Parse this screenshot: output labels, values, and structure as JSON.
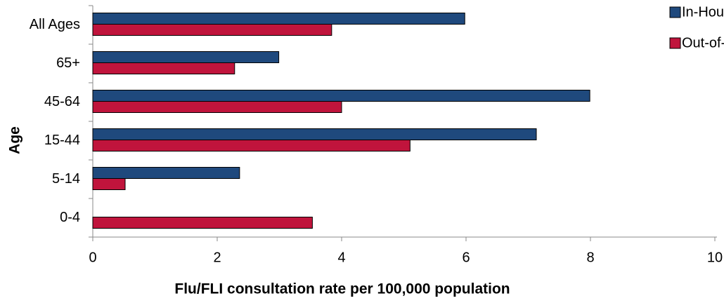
{
  "chart_data": {
    "type": "bar",
    "orientation": "horizontal",
    "categories": [
      "All Ages",
      "65+",
      "45-64",
      "15-44",
      "5-14",
      "0-4"
    ],
    "series": [
      {
        "name": "In-Hours",
        "color": "#1f497d",
        "values": [
          5.98,
          2.99,
          7.99,
          7.13,
          2.36,
          0
        ]
      },
      {
        "name": "Out-of-hours",
        "color": "#c0143c",
        "values": [
          3.84,
          2.28,
          4.0,
          5.1,
          0.52,
          3.53
        ]
      }
    ],
    "xlim": [
      0,
      10
    ],
    "xticks": [
      0,
      2,
      4,
      6,
      8,
      10
    ],
    "xlabel": "Flu/FLI consultation rate per 100,000 population",
    "ylabel": "Age",
    "legend": "top-right",
    "grid": false
  }
}
